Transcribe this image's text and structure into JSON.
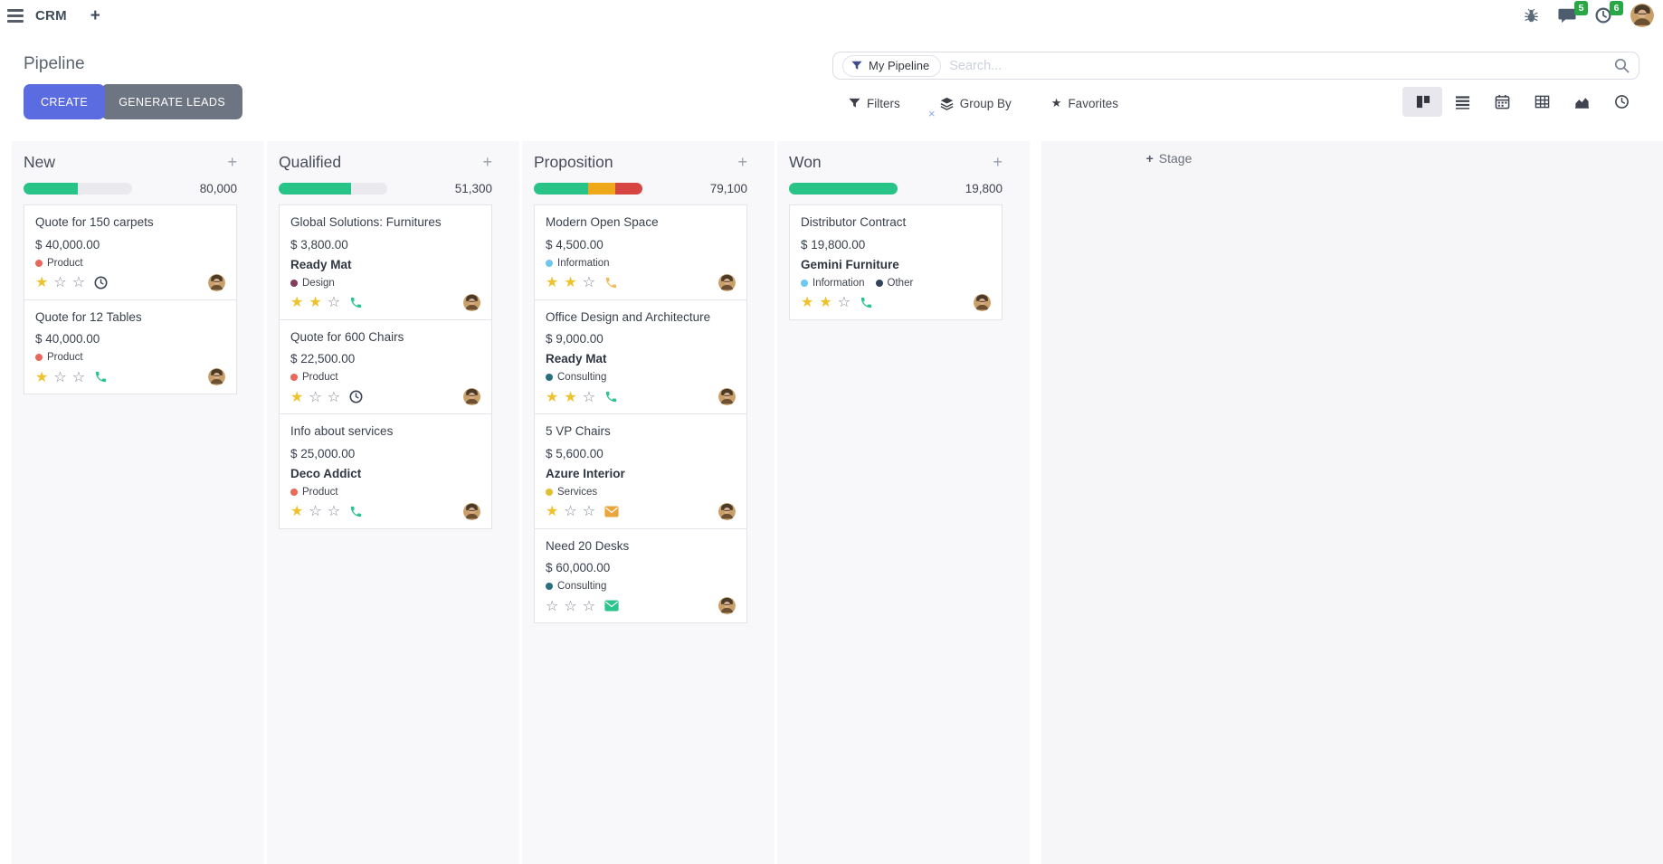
{
  "icons": {
    "plus": "+",
    "close": "×",
    "star_filled": "★",
    "star_empty": "☆"
  },
  "nav": {
    "app_name": "CRM",
    "new_tab": "+",
    "messages_count": "5",
    "activities_count": "6"
  },
  "control_panel": {
    "title": "Pipeline",
    "create_label": "CREATE",
    "generate_leads_label": "GENERATE LEADS",
    "search": {
      "facet": "My Pipeline",
      "placeholder": "Search..."
    },
    "filters_label": "Filters",
    "group_by_label": "Group By",
    "favorites_label": "Favorites",
    "view_switcher": {
      "views": [
        "kanban",
        "list",
        "calendar",
        "pivot",
        "graph",
        "activity"
      ],
      "active": "kanban"
    }
  },
  "colors": {
    "primary_button": "#5b6ce1",
    "secondary_button": "#6d7482",
    "badge_green": "#28a745",
    "progress_green": "#28c387",
    "progress_yellow": "#eea819",
    "progress_red": "#d64541",
    "star_gold": "#efc22c"
  },
  "board": {
    "add_stage_label": "Stage",
    "stars_total": 3,
    "columns": [
      {
        "name": "New",
        "counter": "80,000",
        "progress": [
          {
            "color": "#28c387",
            "pct": 50
          }
        ],
        "cards": [
          {
            "title": "Quote for 150 carpets",
            "amount": "$ 40,000.00",
            "company": "",
            "tags": [
              {
                "label": "Product",
                "color": "#e8695a"
              }
            ],
            "stars": 1,
            "activity": {
              "type": "clock",
              "color": "#3d4454"
            }
          },
          {
            "title": "Quote for 12 Tables",
            "amount": "$ 40,000.00",
            "company": "",
            "tags": [
              {
                "label": "Product",
                "color": "#e8695a"
              }
            ],
            "stars": 1,
            "activity": {
              "type": "phone",
              "color": "#2cc48d"
            }
          }
        ]
      },
      {
        "name": "Qualified",
        "counter": "51,300",
        "progress": [
          {
            "color": "#28c387",
            "pct": 67
          }
        ],
        "cards": [
          {
            "title": "Global Solutions: Furnitures",
            "amount": "$ 3,800.00",
            "company": "Ready Mat",
            "tags": [
              {
                "label": "Design",
                "color": "#823c5e"
              }
            ],
            "stars": 2,
            "activity": {
              "type": "phone",
              "color": "#2cc48d"
            }
          },
          {
            "title": "Quote for 600 Chairs",
            "amount": "$ 22,500.00",
            "company": "",
            "tags": [
              {
                "label": "Product",
                "color": "#e8695a"
              }
            ],
            "stars": 1,
            "activity": {
              "type": "clock",
              "color": "#3d4454"
            }
          },
          {
            "title": "Info about services",
            "amount": "$ 25,000.00",
            "company": "Deco Addict",
            "tags": [
              {
                "label": "Product",
                "color": "#e8695a"
              }
            ],
            "stars": 1,
            "activity": {
              "type": "phone",
              "color": "#2cc48d"
            }
          }
        ]
      },
      {
        "name": "Proposition",
        "counter": "79,100",
        "progress": [
          {
            "color": "#28c387",
            "pct": 50
          },
          {
            "color": "#eea819",
            "pct": 25
          },
          {
            "color": "#d64541",
            "pct": 25
          }
        ],
        "cards": [
          {
            "title": "Modern Open Space",
            "amount": "$ 4,500.00",
            "company": "",
            "tags": [
              {
                "label": "Information",
                "color": "#6ec7f0"
              }
            ],
            "stars": 2,
            "activity": {
              "type": "phone",
              "color": "#f2bb63"
            }
          },
          {
            "title": "Office Design and Architecture",
            "amount": "$ 9,000.00",
            "company": "Ready Mat",
            "tags": [
              {
                "label": "Consulting",
                "color": "#2b6f7f"
              }
            ],
            "stars": 2,
            "activity": {
              "type": "phone",
              "color": "#2cc48d"
            }
          },
          {
            "title": "5 VP Chairs",
            "amount": "$ 5,600.00",
            "company": "Azure Interior",
            "tags": [
              {
                "label": "Services",
                "color": "#ddc12f"
              }
            ],
            "stars": 1,
            "activity": {
              "type": "envelope",
              "color": "#eaa53d"
            }
          },
          {
            "title": "Need 20 Desks",
            "amount": "$ 60,000.00",
            "company": "",
            "tags": [
              {
                "label": "Consulting",
                "color": "#2b6f7f"
              }
            ],
            "stars": 0,
            "activity": {
              "type": "envelope",
              "color": "#2cc48d"
            }
          }
        ]
      },
      {
        "name": "Won",
        "counter": "19,800",
        "progress": [
          {
            "color": "#28c387",
            "pct": 100
          }
        ],
        "cards": [
          {
            "title": "Distributor Contract",
            "amount": "$ 19,800.00",
            "company": "Gemini Furniture",
            "tags": [
              {
                "label": "Information",
                "color": "#6ec7f0"
              },
              {
                "label": "Other",
                "color": "#32435a"
              }
            ],
            "stars": 2,
            "activity": {
              "type": "phone",
              "color": "#2cc48d"
            }
          }
        ]
      }
    ]
  }
}
